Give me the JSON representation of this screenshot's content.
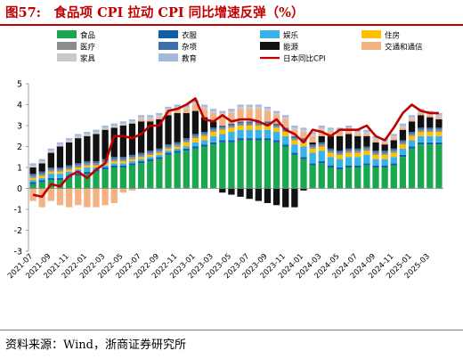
{
  "header": {
    "title": "图57:　食品项 CPI 拉动 CPI 同比增速反弹（%）"
  },
  "footer": {
    "source": "资料来源：Wind，浙商证券研究所"
  },
  "chart_data": {
    "type": "bar",
    "stacked": true,
    "ylim": [
      -3,
      5
    ],
    "yticks": [
      -3,
      -2,
      -1,
      0,
      1,
      2,
      3,
      4,
      5
    ],
    "x_tick_labels": [
      "2021-07",
      "2021-09",
      "2021-11",
      "2022-01",
      "2022-03",
      "2022-05",
      "2022-07",
      "2022-09",
      "2022-11",
      "2023-01",
      "2023-03",
      "2023-05",
      "2023-07",
      "2023-09",
      "2023-11",
      "2024-01",
      "2024-03",
      "2024-05",
      "2024-07",
      "2024-09",
      "2024-11",
      "2025-01",
      "2025-03"
    ],
    "categories": [
      "2021-07",
      "2021-08",
      "2021-09",
      "2021-10",
      "2021-11",
      "2021-12",
      "2022-01",
      "2022-02",
      "2022-03",
      "2022-04",
      "2022-05",
      "2022-06",
      "2022-07",
      "2022-08",
      "2022-09",
      "2022-10",
      "2022-11",
      "2022-12",
      "2023-01",
      "2023-02",
      "2023-03",
      "2023-04",
      "2023-05",
      "2023-06",
      "2023-07",
      "2023-08",
      "2023-09",
      "2023-10",
      "2023-11",
      "2023-12",
      "2024-01",
      "2024-02",
      "2024-03",
      "2024-04",
      "2024-05",
      "2024-06",
      "2024-07",
      "2024-08",
      "2024-09",
      "2024-10",
      "2024-11",
      "2024-12",
      "2025-01",
      "2025-02",
      "2025-03",
      "2025-04"
    ],
    "legend_position": "top",
    "series": [
      {
        "name": "食品",
        "color": "#1aa84e",
        "values": [
          0.2,
          0.3,
          0.4,
          0.4,
          0.5,
          0.6,
          0.7,
          0.8,
          0.9,
          1.0,
          1.0,
          1.1,
          1.2,
          1.3,
          1.4,
          1.6,
          1.7,
          1.8,
          1.9,
          2.0,
          2.1,
          2.2,
          2.2,
          2.3,
          2.3,
          2.3,
          2.3,
          2.2,
          2.0,
          1.6,
          1.4,
          1.1,
          1.2,
          1.0,
          0.9,
          1.0,
          1.0,
          1.1,
          1.0,
          1.0,
          1.1,
          1.5,
          1.9,
          2.1,
          2.1,
          2.1
        ]
      },
      {
        "name": "衣服",
        "color": "#0f5ea8",
        "values": [
          0.1,
          0.1,
          0.1,
          0.1,
          0.1,
          0.1,
          0.1,
          0.1,
          0.1,
          0.1,
          0.1,
          0.1,
          0.1,
          0.1,
          0.1,
          0.1,
          0.1,
          0.1,
          0.1,
          0.1,
          0.1,
          0.1,
          0.1,
          0.1,
          0.1,
          0.1,
          0.1,
          0.1,
          0.1,
          0.1,
          0.1,
          0.1,
          0.1,
          0.1,
          0.1,
          0.1,
          0.1,
          0.1,
          0.1,
          0.1,
          0.1,
          0.1,
          0.1,
          0.1,
          0.1,
          0.1
        ]
      },
      {
        "name": "娱乐",
        "color": "#37b2ea",
        "values": [
          0.1,
          0.1,
          0.2,
          0.2,
          0.2,
          0.2,
          0.2,
          0.1,
          0.1,
          0.1,
          0.1,
          0.1,
          0.1,
          0.1,
          0.1,
          0.1,
          0.1,
          0.1,
          0.2,
          0.2,
          0.3,
          0.3,
          0.4,
          0.4,
          0.4,
          0.4,
          0.4,
          0.4,
          0.4,
          0.4,
          0.5,
          0.5,
          0.5,
          0.4,
          0.4,
          0.4,
          0.4,
          0.4,
          0.3,
          0.3,
          0.3,
          0.3,
          0.3,
          0.3,
          0.3,
          0.3
        ]
      },
      {
        "name": "住房",
        "color": "#ffc000",
        "values": [
          0.1,
          0.1,
          0.1,
          0.1,
          0.1,
          0.1,
          0.1,
          0.1,
          0.1,
          0.1,
          0.1,
          0.1,
          0.1,
          0.1,
          0.1,
          0.1,
          0.1,
          0.2,
          0.2,
          0.2,
          0.2,
          0.2,
          0.2,
          0.2,
          0.2,
          0.2,
          0.2,
          0.2,
          0.2,
          0.2,
          0.2,
          0.2,
          0.2,
          0.2,
          0.2,
          0.2,
          0.2,
          0.2,
          0.2,
          0.2,
          0.2,
          0.2,
          0.2,
          0.2,
          0.2,
          0.2
        ]
      },
      {
        "name": "医疗",
        "color": "#8c8c8c",
        "values": [
          0.1,
          0.1,
          0.1,
          0.1,
          0.1,
          0.1,
          0.1,
          0.1,
          0.1,
          0.1,
          0.1,
          0.1,
          0.1,
          0.1,
          0.1,
          0.1,
          0.1,
          0.1,
          0.1,
          0.1,
          0.1,
          0.1,
          0.1,
          0.1,
          0.1,
          0.1,
          0.1,
          0.1,
          0.1,
          0.1,
          0.1,
          0.1,
          0.1,
          0.1,
          0.1,
          0.1,
          0.1,
          0.1,
          0.1,
          0.1,
          0.1,
          0.1,
          0.1,
          0.1,
          0.1,
          0.1
        ]
      },
      {
        "name": "杂项",
        "color": "#3d6fa8",
        "values": [
          0.1,
          0.1,
          0.1,
          0.1,
          0.1,
          0.1,
          0.1,
          0.1,
          0.1,
          0.1,
          0.1,
          0.1,
          0.1,
          0.1,
          0.1,
          0.1,
          0.1,
          0.1,
          0.1,
          0.1,
          0.1,
          0.1,
          0.1,
          0.1,
          0.1,
          0.1,
          0.1,
          0.1,
          0.1,
          0.1,
          0.1,
          0.1,
          0.1,
          0.1,
          0.1,
          0.1,
          0.1,
          0.1,
          0.1,
          0.1,
          0.1,
          0.1,
          0.1,
          0.1,
          0.1,
          0.1
        ]
      },
      {
        "name": "能源",
        "color": "#111111",
        "values": [
          0.3,
          0.4,
          0.7,
          1.0,
          1.1,
          1.2,
          1.2,
          1.3,
          1.4,
          1.4,
          1.5,
          1.5,
          1.5,
          1.4,
          1.4,
          1.4,
          1.4,
          1.2,
          1.1,
          0.7,
          0.3,
          -0.2,
          -0.3,
          -0.4,
          -0.5,
          -0.6,
          -0.7,
          -0.8,
          -0.9,
          -0.9,
          -0.1,
          0.1,
          0.3,
          0.6,
          0.7,
          0.7,
          0.6,
          0.5,
          0.4,
          0.3,
          0.4,
          0.5,
          0.5,
          0.6,
          0.5,
          0.4
        ]
      },
      {
        "name": "交通和通信",
        "color": "#f4b183",
        "values": [
          -0.6,
          -0.9,
          -0.6,
          -0.8,
          -0.9,
          -0.8,
          -0.9,
          -0.9,
          -0.8,
          -0.7,
          -0.2,
          -0.1,
          0.1,
          0.1,
          0.1,
          0.2,
          0.2,
          0.2,
          0.3,
          0.4,
          0.4,
          0.5,
          0.5,
          0.6,
          0.6,
          0.6,
          0.5,
          0.4,
          0.4,
          0.3,
          0.3,
          0.3,
          0.3,
          0.2,
          0.2,
          0.2,
          0.1,
          0.1,
          0.1,
          0.1,
          0.1,
          0.1,
          0.1,
          0.1,
          0.1,
          0.1
        ]
      },
      {
        "name": "家具",
        "color": "#c9c9c9",
        "values": [
          0.1,
          0.1,
          0.1,
          0.1,
          0.1,
          0.1,
          0.1,
          0.1,
          0.1,
          0.1,
          0.1,
          0.1,
          0.1,
          0.1,
          0.1,
          0.1,
          0.1,
          0.1,
          0.1,
          0.1,
          0.1,
          0.1,
          0.1,
          0.1,
          0.1,
          0.1,
          0.1,
          0.1,
          0.1,
          0.1,
          0.1,
          0.1,
          0.1,
          0.1,
          0.1,
          0.1,
          0.1,
          0.1,
          0.1,
          0.1,
          0.1,
          0.1,
          0.1,
          0.1,
          0.1,
          0.1
        ]
      },
      {
        "name": "教育",
        "color": "#a4b8dc",
        "values": [
          0.1,
          0.1,
          0.1,
          0.1,
          0.1,
          0.1,
          0.1,
          0.1,
          0.1,
          0.1,
          0.1,
          0.1,
          0.1,
          0.1,
          0.1,
          0.1,
          0.1,
          0.1,
          0.1,
          0.1,
          0.1,
          0.1,
          0.1,
          0.1,
          0.1,
          0.1,
          0.1,
          0.1,
          0.1,
          0.1,
          0.1,
          0.1,
          0.1,
          0.1,
          0.1,
          0.1,
          0.1,
          0.1,
          0.1,
          0.1,
          0.1,
          0.1,
          0.1,
          0.1,
          0.1,
          0.1
        ]
      }
    ],
    "line_series": {
      "name": "日本同比CPI",
      "color": "#c00000",
      "values": [
        -0.3,
        -0.4,
        0.2,
        0.1,
        0.6,
        0.8,
        0.5,
        0.9,
        1.2,
        2.5,
        2.5,
        2.4,
        2.6,
        3.0,
        3.0,
        3.7,
        3.8,
        4.0,
        4.3,
        3.3,
        3.2,
        3.5,
        3.2,
        3.3,
        3.3,
        3.2,
        3.0,
        3.3,
        2.8,
        2.6,
        2.2,
        2.8,
        2.7,
        2.5,
        2.8,
        2.8,
        2.8,
        3.0,
        2.5,
        2.3,
        2.9,
        3.6,
        4.0,
        3.7,
        3.6,
        3.6
      ]
    }
  }
}
